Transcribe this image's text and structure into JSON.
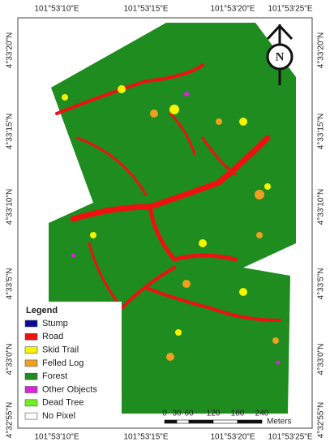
{
  "map": {
    "x_labels": [
      "101°53'10\"E",
      "101°53'15\"E",
      "101°53'20\"E",
      "101°53'25\"E"
    ],
    "y_labels": [
      "4°33'20\"N",
      "4°33'15\"N",
      "4°33'10\"N",
      "4°33'5\"N",
      "4°33'0\"N",
      "4°32'55\"N"
    ],
    "north": "N",
    "legend": {
      "title": "Legend",
      "items": [
        {
          "name": "Stump",
          "color": "#0a0a9a"
        },
        {
          "name": "Road",
          "color": "#ee1111"
        },
        {
          "name": "Skid Trail",
          "color": "#f5f500"
        },
        {
          "name": "Felled Log",
          "color": "#f0a020"
        },
        {
          "name": "Forest",
          "color": "#1e8c1e"
        },
        {
          "name": "Other Objects",
          "color": "#e020e0"
        },
        {
          "name": "Dead Tree",
          "color": "#70f020"
        },
        {
          "name": "No Pixel",
          "color": "#ffffff"
        }
      ]
    },
    "scale_bar": {
      "ticks": [
        0,
        30,
        60,
        120,
        180,
        240
      ],
      "unit": "Meters"
    }
  }
}
